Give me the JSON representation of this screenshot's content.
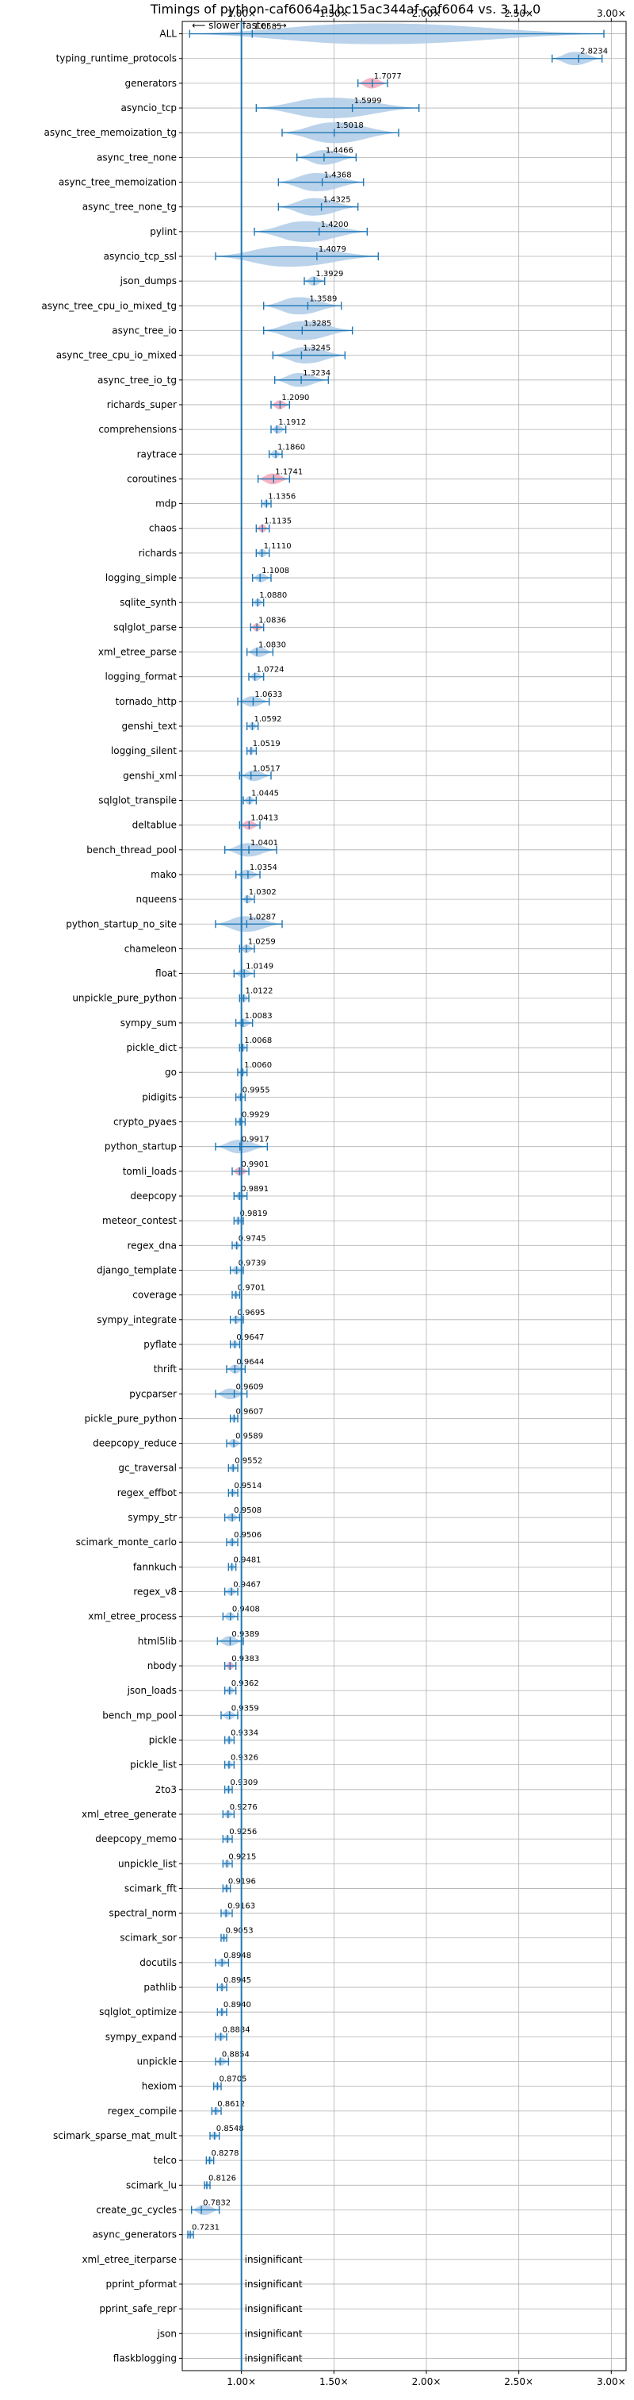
{
  "chart_data": {
    "type": "violin",
    "title": "Timings of python-caf6064a1bc15ac344af-caf6064 vs. 3.11.0",
    "speed_note": "⟵ slower   faster ⟶",
    "xlim": [
      0.68,
      3.08
    ],
    "xticks": [
      1.0,
      1.5,
      2.0,
      2.5,
      3.0
    ],
    "xtick_labels": [
      "1.00×",
      "1.50×",
      "2.00×",
      "2.50×",
      "3.00×"
    ],
    "reference_line": 1.0,
    "insignificant_label": "insignificant",
    "colors": {
      "violin": "#aecbe7",
      "violin_highlight": "#f4a6b8",
      "whisker": "#1f77b4",
      "grid": "#b0b0b0",
      "ref": "#1f77b4"
    },
    "benchmarks": [
      {
        "name": "ALL",
        "mean": 1.0585,
        "lo": 0.72,
        "hi": 2.96
      },
      {
        "name": "typing_runtime_protocols",
        "mean": 2.8234,
        "lo": 2.68,
        "hi": 2.95
      },
      {
        "name": "generators",
        "mean": 1.7077,
        "lo": 1.63,
        "hi": 1.79,
        "highlight": true
      },
      {
        "name": "asyncio_tcp",
        "mean": 1.5999,
        "lo": 1.08,
        "hi": 1.96
      },
      {
        "name": "async_tree_memoization_tg",
        "mean": 1.5018,
        "lo": 1.22,
        "hi": 1.85
      },
      {
        "name": "async_tree_none",
        "mean": 1.4466,
        "lo": 1.3,
        "hi": 1.62
      },
      {
        "name": "async_tree_memoization",
        "mean": 1.4368,
        "lo": 1.2,
        "hi": 1.66
      },
      {
        "name": "async_tree_none_tg",
        "mean": 1.4325,
        "lo": 1.2,
        "hi": 1.63
      },
      {
        "name": "pylint",
        "mean": 1.42,
        "lo": 1.07,
        "hi": 1.68
      },
      {
        "name": "asyncio_tcp_ssl",
        "mean": 1.4079,
        "lo": 0.86,
        "hi": 1.74
      },
      {
        "name": "json_dumps",
        "mean": 1.3929,
        "lo": 1.34,
        "hi": 1.45
      },
      {
        "name": "async_tree_cpu_io_mixed_tg",
        "mean": 1.3589,
        "lo": 1.12,
        "hi": 1.54
      },
      {
        "name": "async_tree_io",
        "mean": 1.3285,
        "lo": 1.12,
        "hi": 1.6
      },
      {
        "name": "async_tree_cpu_io_mixed",
        "mean": 1.3245,
        "lo": 1.17,
        "hi": 1.56
      },
      {
        "name": "async_tree_io_tg",
        "mean": 1.3234,
        "lo": 1.18,
        "hi": 1.47
      },
      {
        "name": "richards_super",
        "mean": 1.209,
        "lo": 1.16,
        "hi": 1.26,
        "highlight": true
      },
      {
        "name": "comprehensions",
        "mean": 1.1912,
        "lo": 1.16,
        "hi": 1.24
      },
      {
        "name": "raytrace",
        "mean": 1.186,
        "lo": 1.15,
        "hi": 1.22
      },
      {
        "name": "coroutines",
        "mean": 1.1741,
        "lo": 1.09,
        "hi": 1.26,
        "highlight": true
      },
      {
        "name": "mdp",
        "mean": 1.1356,
        "lo": 1.11,
        "hi": 1.16
      },
      {
        "name": "chaos",
        "mean": 1.1135,
        "lo": 1.08,
        "hi": 1.15,
        "highlight": true
      },
      {
        "name": "richards",
        "mean": 1.111,
        "lo": 1.08,
        "hi": 1.15
      },
      {
        "name": "logging_simple",
        "mean": 1.1008,
        "lo": 1.06,
        "hi": 1.16
      },
      {
        "name": "sqlite_synth",
        "mean": 1.088,
        "lo": 1.06,
        "hi": 1.12
      },
      {
        "name": "sqlglot_parse",
        "mean": 1.0836,
        "lo": 1.05,
        "hi": 1.12,
        "highlight": true
      },
      {
        "name": "xml_etree_parse",
        "mean": 1.083,
        "lo": 1.03,
        "hi": 1.17
      },
      {
        "name": "logging_format",
        "mean": 1.0724,
        "lo": 1.04,
        "hi": 1.12
      },
      {
        "name": "tornado_http",
        "mean": 1.0633,
        "lo": 0.98,
        "hi": 1.15
      },
      {
        "name": "genshi_text",
        "mean": 1.0592,
        "lo": 1.03,
        "hi": 1.09
      },
      {
        "name": "logging_silent",
        "mean": 1.0519,
        "lo": 1.03,
        "hi": 1.08
      },
      {
        "name": "genshi_xml",
        "mean": 1.0517,
        "lo": 0.99,
        "hi": 1.16
      },
      {
        "name": "sqlglot_transpile",
        "mean": 1.0445,
        "lo": 1.01,
        "hi": 1.08
      },
      {
        "name": "deltablue",
        "mean": 1.0413,
        "lo": 0.99,
        "hi": 1.1,
        "highlight": true
      },
      {
        "name": "bench_thread_pool",
        "mean": 1.0401,
        "lo": 0.91,
        "hi": 1.19
      },
      {
        "name": "mako",
        "mean": 1.0354,
        "lo": 0.97,
        "hi": 1.1
      },
      {
        "name": "nqueens",
        "mean": 1.0302,
        "lo": 1.0,
        "hi": 1.07
      },
      {
        "name": "python_startup_no_site",
        "mean": 1.0287,
        "lo": 0.86,
        "hi": 1.22
      },
      {
        "name": "chameleon",
        "mean": 1.0259,
        "lo": 0.99,
        "hi": 1.07
      },
      {
        "name": "float",
        "mean": 1.0149,
        "lo": 0.96,
        "hi": 1.07
      },
      {
        "name": "unpickle_pure_python",
        "mean": 1.0122,
        "lo": 0.99,
        "hi": 1.04
      },
      {
        "name": "sympy_sum",
        "mean": 1.0083,
        "lo": 0.97,
        "hi": 1.06
      },
      {
        "name": "pickle_dict",
        "mean": 1.0068,
        "lo": 0.99,
        "hi": 1.03
      },
      {
        "name": "go",
        "mean": 1.006,
        "lo": 0.98,
        "hi": 1.03
      },
      {
        "name": "pidigits",
        "mean": 0.9955,
        "lo": 0.97,
        "hi": 1.02
      },
      {
        "name": "crypto_pyaes",
        "mean": 0.9929,
        "lo": 0.97,
        "hi": 1.02
      },
      {
        "name": "python_startup",
        "mean": 0.9917,
        "lo": 0.86,
        "hi": 1.14
      },
      {
        "name": "tomli_loads",
        "mean": 0.9901,
        "lo": 0.95,
        "hi": 1.04,
        "highlight": true
      },
      {
        "name": "deepcopy",
        "mean": 0.9891,
        "lo": 0.96,
        "hi": 1.03
      },
      {
        "name": "meteor_contest",
        "mean": 0.9819,
        "lo": 0.96,
        "hi": 1.01
      },
      {
        "name": "regex_dna",
        "mean": 0.9745,
        "lo": 0.95,
        "hi": 1.0
      },
      {
        "name": "django_template",
        "mean": 0.9739,
        "lo": 0.94,
        "hi": 1.01
      },
      {
        "name": "coverage",
        "mean": 0.9701,
        "lo": 0.95,
        "hi": 0.99
      },
      {
        "name": "sympy_integrate",
        "mean": 0.9695,
        "lo": 0.94,
        "hi": 1.01
      },
      {
        "name": "pyflate",
        "mean": 0.9647,
        "lo": 0.94,
        "hi": 0.99
      },
      {
        "name": "thrift",
        "mean": 0.9644,
        "lo": 0.92,
        "hi": 1.02
      },
      {
        "name": "pycparser",
        "mean": 0.9609,
        "lo": 0.86,
        "hi": 1.03
      },
      {
        "name": "pickle_pure_python",
        "mean": 0.9607,
        "lo": 0.94,
        "hi": 0.98
      },
      {
        "name": "deepcopy_reduce",
        "mean": 0.9589,
        "lo": 0.92,
        "hi": 1.0
      },
      {
        "name": "gc_traversal",
        "mean": 0.9552,
        "lo": 0.93,
        "hi": 0.98
      },
      {
        "name": "regex_effbot",
        "mean": 0.9514,
        "lo": 0.93,
        "hi": 0.98
      },
      {
        "name": "sympy_str",
        "mean": 0.9508,
        "lo": 0.91,
        "hi": 0.99
      },
      {
        "name": "scimark_monte_carlo",
        "mean": 0.9506,
        "lo": 0.92,
        "hi": 0.98
      },
      {
        "name": "fannkuch",
        "mean": 0.9481,
        "lo": 0.93,
        "hi": 0.97
      },
      {
        "name": "regex_v8",
        "mean": 0.9467,
        "lo": 0.91,
        "hi": 0.98
      },
      {
        "name": "xml_etree_process",
        "mean": 0.9408,
        "lo": 0.9,
        "hi": 0.98
      },
      {
        "name": "html5lib",
        "mean": 0.9389,
        "lo": 0.87,
        "hi": 1.01
      },
      {
        "name": "nbody",
        "mean": 0.9383,
        "lo": 0.91,
        "hi": 0.97,
        "highlight": true
      },
      {
        "name": "json_loads",
        "mean": 0.9362,
        "lo": 0.91,
        "hi": 0.97
      },
      {
        "name": "bench_mp_pool",
        "mean": 0.9359,
        "lo": 0.89,
        "hi": 0.98
      },
      {
        "name": "pickle",
        "mean": 0.9334,
        "lo": 0.91,
        "hi": 0.96
      },
      {
        "name": "pickle_list",
        "mean": 0.9326,
        "lo": 0.91,
        "hi": 0.96
      },
      {
        "name": "2to3",
        "mean": 0.9309,
        "lo": 0.91,
        "hi": 0.95
      },
      {
        "name": "xml_etree_generate",
        "mean": 0.9276,
        "lo": 0.9,
        "hi": 0.96
      },
      {
        "name": "deepcopy_memo",
        "mean": 0.9256,
        "lo": 0.9,
        "hi": 0.95
      },
      {
        "name": "unpickle_list",
        "mean": 0.9215,
        "lo": 0.9,
        "hi": 0.95
      },
      {
        "name": "scimark_fft",
        "mean": 0.9196,
        "lo": 0.9,
        "hi": 0.94
      },
      {
        "name": "spectral_norm",
        "mean": 0.9163,
        "lo": 0.89,
        "hi": 0.95
      },
      {
        "name": "scimark_sor",
        "mean": 0.9053,
        "lo": 0.89,
        "hi": 0.92
      },
      {
        "name": "docutils",
        "mean": 0.8948,
        "lo": 0.86,
        "hi": 0.93
      },
      {
        "name": "pathlib",
        "mean": 0.8945,
        "lo": 0.87,
        "hi": 0.92
      },
      {
        "name": "sqlglot_optimize",
        "mean": 0.894,
        "lo": 0.87,
        "hi": 0.92
      },
      {
        "name": "sympy_expand",
        "mean": 0.8884,
        "lo": 0.86,
        "hi": 0.92
      },
      {
        "name": "unpickle",
        "mean": 0.8854,
        "lo": 0.86,
        "hi": 0.93
      },
      {
        "name": "hexiom",
        "mean": 0.8705,
        "lo": 0.85,
        "hi": 0.89
      },
      {
        "name": "regex_compile",
        "mean": 0.8612,
        "lo": 0.84,
        "hi": 0.89
      },
      {
        "name": "scimark_sparse_mat_mult",
        "mean": 0.8548,
        "lo": 0.83,
        "hi": 0.88
      },
      {
        "name": "telco",
        "mean": 0.8278,
        "lo": 0.81,
        "hi": 0.85
      },
      {
        "name": "scimark_lu",
        "mean": 0.8126,
        "lo": 0.8,
        "hi": 0.83
      },
      {
        "name": "create_gc_cycles",
        "mean": 0.7832,
        "lo": 0.73,
        "hi": 0.88
      },
      {
        "name": "async_generators",
        "mean": 0.7231,
        "lo": 0.71,
        "hi": 0.74
      },
      {
        "name": "xml_etree_iterparse",
        "insignificant": true
      },
      {
        "name": "pprint_pformat",
        "insignificant": true
      },
      {
        "name": "pprint_safe_repr",
        "insignificant": true
      },
      {
        "name": "json",
        "insignificant": true
      },
      {
        "name": "flaskblogging",
        "insignificant": true
      }
    ]
  }
}
